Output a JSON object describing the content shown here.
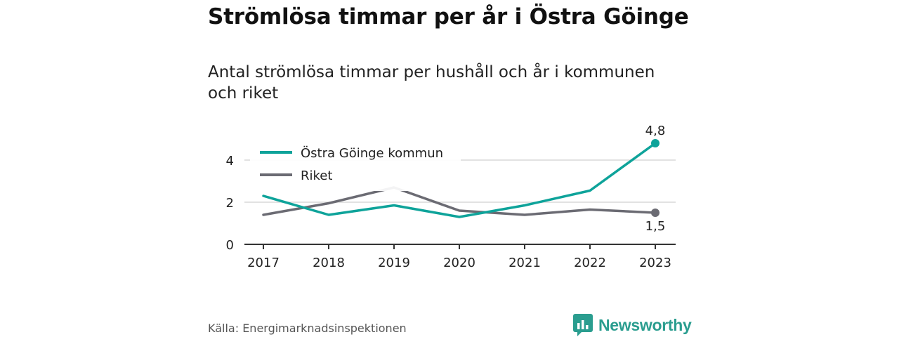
{
  "header": {
    "title": "Strömlösa timmar per år i Östra Göinge",
    "subtitle": "Antal strömlösa timmar per hushåll och år i kommunen och riket"
  },
  "footer": {
    "source": "Källa: Energimarknadsinspektionen",
    "brand": "Newsworthy",
    "brand_icon": "newsworthy-logo-icon"
  },
  "colors": {
    "kommun": "#0ea39a",
    "riket": "#6b6b73",
    "grid": "#d9d9d9",
    "axis": "#333333",
    "brand": "#2a9d8f"
  },
  "chart_data": {
    "type": "line",
    "categories": [
      "2017",
      "2018",
      "2019",
      "2020",
      "2021",
      "2022",
      "2023"
    ],
    "series": [
      {
        "name": "Östra Göinge kommun",
        "values": [
          2.3,
          1.4,
          1.85,
          1.3,
          1.85,
          2.55,
          4.8
        ]
      },
      {
        "name": "Riket",
        "values": [
          1.4,
          1.95,
          2.7,
          1.6,
          1.4,
          1.65,
          1.5
        ]
      }
    ],
    "end_labels": [
      "4,8",
      "1,5"
    ],
    "yticks": [
      "0",
      "2",
      "4"
    ],
    "ylim": [
      0,
      5
    ],
    "grid": true,
    "legend_position": "top-left"
  }
}
